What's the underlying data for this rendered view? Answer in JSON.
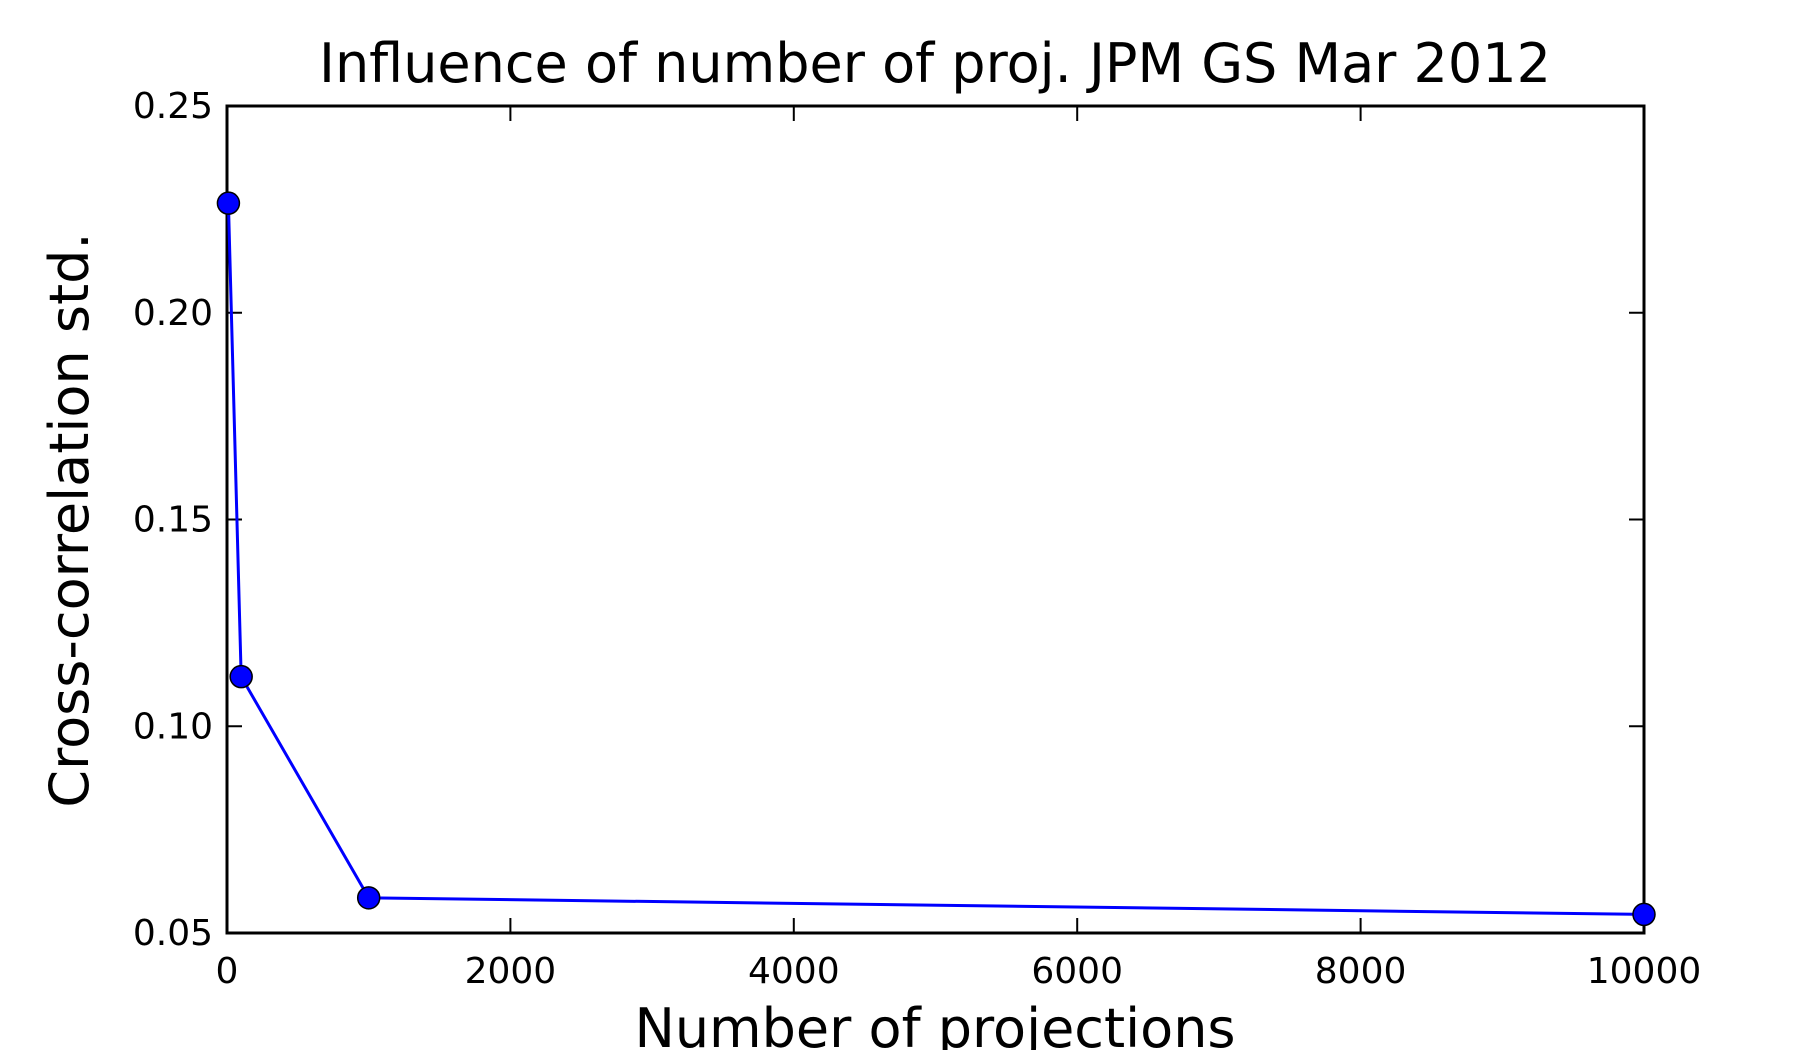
{
  "chart_data": {
    "type": "line",
    "title": "Influence of number of proj. JPM GS Mar 2012",
    "xlabel": "Number of projections",
    "ylabel": "Cross-correlation std.",
    "xlim": [
      0,
      10000
    ],
    "ylim": [
      0.05,
      0.25
    ],
    "xticks": [
      0,
      2000,
      4000,
      6000,
      8000,
      10000
    ],
    "xtick_labels": [
      "0",
      "2000",
      "4000",
      "6000",
      "8000",
      "10000"
    ],
    "yticks": [
      0.05,
      0.1,
      0.15,
      0.2,
      0.25
    ],
    "ytick_labels": [
      "0.05",
      "0.10",
      "0.15",
      "0.20",
      "0.25"
    ],
    "grid": false,
    "series": [
      {
        "color": "#0000ff",
        "marker": "circle",
        "x": [
          10,
          100,
          1000,
          10000
        ],
        "y": [
          0.2265,
          0.112,
          0.0585,
          0.0545
        ]
      }
    ]
  }
}
